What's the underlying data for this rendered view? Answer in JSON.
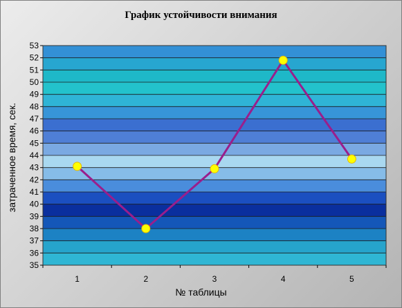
{
  "chart_data": {
    "type": "line",
    "title": "График устойчивости внимания",
    "xlabel": "№ таблицы",
    "ylabel": "затраченное время, сек.",
    "categories": [
      "1",
      "2",
      "3",
      "4",
      "5"
    ],
    "series": [
      {
        "values": [
          43.1,
          38.0,
          42.9,
          51.8,
          43.7
        ],
        "line_color": "#9a1e8c",
        "marker_color": "#ffff00"
      }
    ],
    "ylim": [
      35,
      53
    ],
    "y_ticks": [
      "35",
      "36",
      "37",
      "38",
      "39",
      "40",
      "41",
      "42",
      "43",
      "44",
      "45",
      "46",
      "47",
      "48",
      "49",
      "50",
      "51",
      "52",
      "53"
    ],
    "grid": true,
    "legend": "none",
    "plot_background": "banded blue-cyan gradient"
  }
}
